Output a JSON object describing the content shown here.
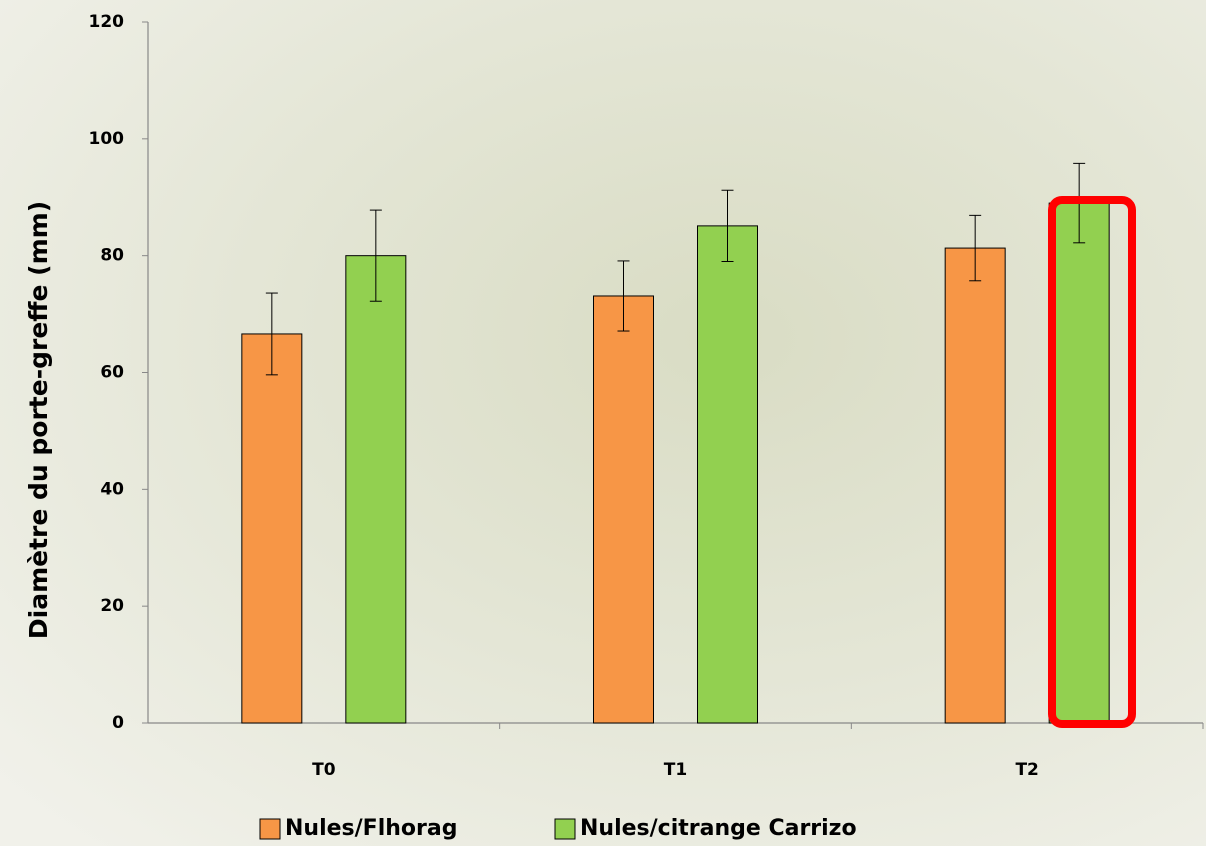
{
  "chart_data": {
    "type": "bar",
    "y_label": "Diamètre du porte-greffe (mm)",
    "categories": [
      "T0",
      "T1",
      "T2"
    ],
    "series": [
      {
        "name": "Nules/Flhorag",
        "color": "#f79646",
        "values": [
          66.6,
          73.1,
          81.3
        ],
        "errors": [
          7,
          6,
          5.6
        ]
      },
      {
        "name": "Nules/citrange Carrizo",
        "color": "#92d050",
        "values": [
          80,
          85.1,
          89
        ],
        "errors": [
          7.8,
          6.1,
          6.8
        ]
      }
    ],
    "ylim": [
      0,
      120
    ],
    "yticks": [
      0,
      20,
      40,
      60,
      80,
      100,
      120
    ],
    "grid": false
  }
}
